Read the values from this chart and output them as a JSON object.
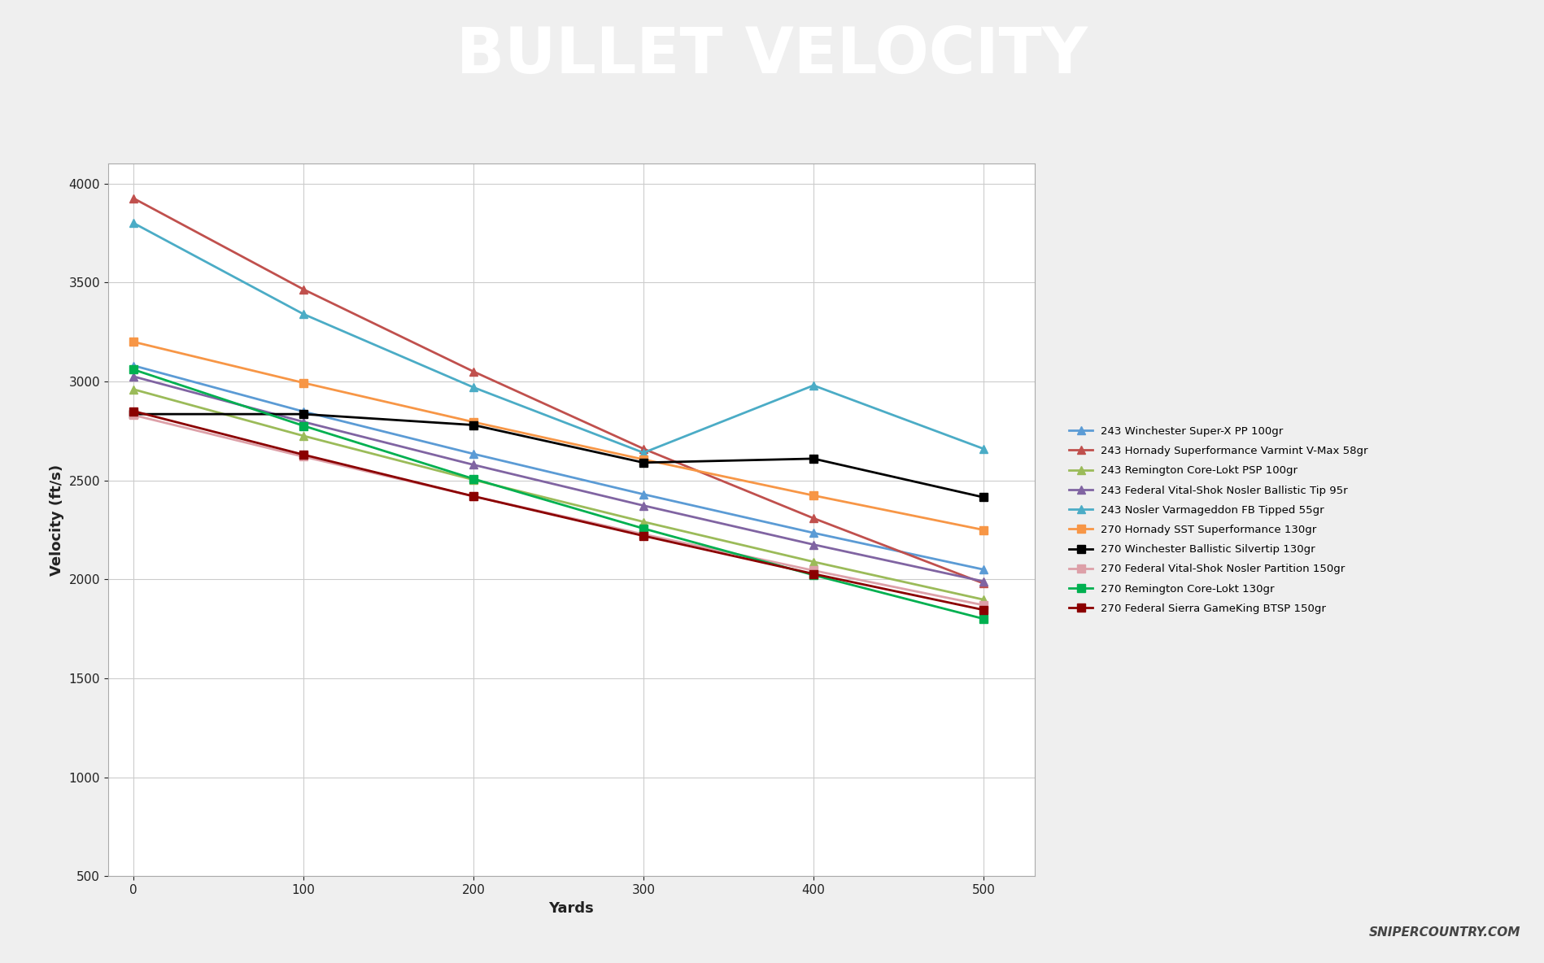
{
  "title": "BULLET VELOCITY",
  "xlabel": "Yards",
  "ylabel": "Velocity (ft/s)",
  "yards": [
    0,
    100,
    200,
    300,
    400,
    500
  ],
  "series": [
    {
      "label": "243 Winchester Super-X PP 100gr",
      "color": "#5B9BD5",
      "marker": "^",
      "values": [
        3080,
        2848,
        2634,
        2430,
        2235,
        2050
      ]
    },
    {
      "label": "243 Hornady Superformance Varmint V-Max 58gr",
      "color": "#C0504D",
      "marker": "^",
      "values": [
        3925,
        3465,
        3050,
        2660,
        2309,
        1980
      ]
    },
    {
      "label": "243 Remington Core-Lokt PSP 100gr",
      "color": "#9BBB59",
      "marker": "^",
      "values": [
        2960,
        2725,
        2503,
        2291,
        2089,
        1898
      ]
    },
    {
      "label": "243 Federal Vital-Shok Nosler Ballistic Tip 95r",
      "color": "#8064A2",
      "marker": "^",
      "values": [
        3025,
        2796,
        2579,
        2373,
        2176,
        1990
      ]
    },
    {
      "label": "243 Nosler Varmageddon FB Tipped 55gr",
      "color": "#4BACC6",
      "marker": "^",
      "values": [
        3800,
        3340,
        2970,
        2640,
        2980,
        2660
      ]
    },
    {
      "label": "270 Hornady SST Superformance 130gr",
      "color": "#F79646",
      "marker": "s",
      "values": [
        3200,
        2993,
        2795,
        2606,
        2424,
        2250
      ]
    },
    {
      "label": "270 Winchester Ballistic Silvertip 130gr",
      "color": "#000000",
      "marker": "s",
      "values": [
        2835,
        2835,
        2780,
        2590,
        2610,
        2415
      ]
    },
    {
      "label": "270 Federal Vital-Shok Nosler Partition 150gr",
      "color": "#DDA0A8",
      "marker": "s",
      "values": [
        2830,
        2620,
        2420,
        2228,
        2045,
        1870
      ]
    },
    {
      "label": "270 Remington Core-Lokt 130gr",
      "color": "#00B050",
      "marker": "s",
      "values": [
        3060,
        2776,
        2508,
        2257,
        2022,
        1801
      ]
    },
    {
      "label": "270 Federal Sierra GameKing BTSP 150gr",
      "color": "#8B0000",
      "marker": "s",
      "values": [
        2850,
        2630,
        2420,
        2220,
        2028,
        1846
      ]
    }
  ],
  "ylim": [
    500,
    4100
  ],
  "yticks": [
    500,
    1000,
    1500,
    2000,
    2500,
    3000,
    3500,
    4000
  ],
  "xlim": [
    -15,
    530
  ],
  "bg_header": "#595959",
  "bg_stripe": "#E05555",
  "bg_outer": "#EFEFEF",
  "bg_plot": "#FFFFFF",
  "watermark_text": "SNIPERCOUNTRY.COM",
  "title_color": "#FFFFFF",
  "title_fontsize": 56
}
